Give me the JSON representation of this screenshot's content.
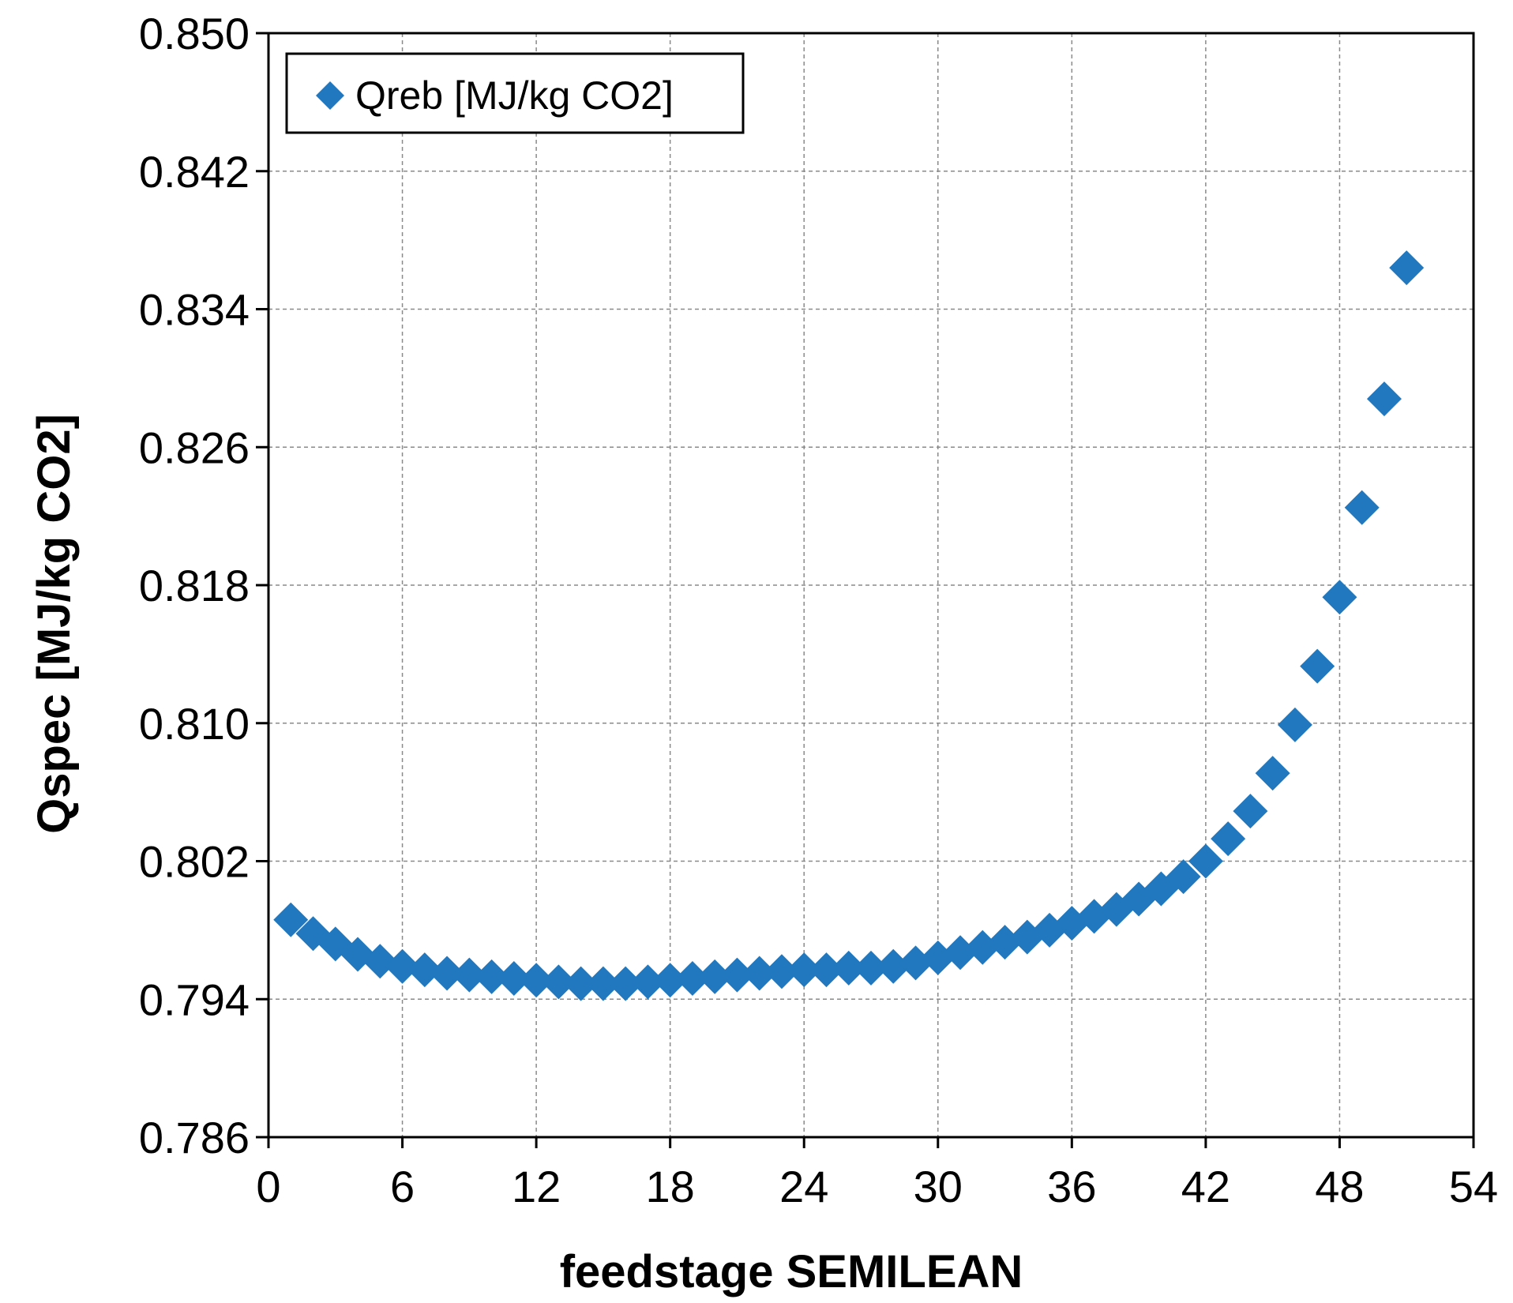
{
  "chart_data": {
    "type": "scatter",
    "title": "",
    "xlabel": "feedstage SEMILEAN",
    "ylabel": "Qspec [MJ/kg CO2]",
    "xlim": [
      0,
      54
    ],
    "ylim": [
      0.786,
      0.85
    ],
    "xticks": [
      0,
      6,
      12,
      18,
      24,
      30,
      36,
      42,
      48,
      54
    ],
    "xtick_labels": [
      "0",
      "6",
      "12",
      "18",
      "24",
      "30",
      "36",
      "42",
      "48",
      "54"
    ],
    "yticks": [
      0.786,
      0.794,
      0.802,
      0.81,
      0.818,
      0.826,
      0.834,
      0.842,
      0.85
    ],
    "ytick_labels": [
      "0.786",
      "0.794",
      "0.802",
      "0.810",
      "0.818",
      "0.826",
      "0.834",
      "0.842",
      "0.850"
    ],
    "grid": true,
    "legend_position": "top-left",
    "series": [
      {
        "name": "Qreb [MJ/kg CO2]",
        "color": "#2178BE",
        "marker": "diamond",
        "x": [
          1,
          2,
          3,
          4,
          5,
          6,
          7,
          8,
          9,
          10,
          11,
          12,
          13,
          14,
          15,
          16,
          17,
          18,
          19,
          20,
          21,
          22,
          23,
          24,
          25,
          26,
          27,
          28,
          29,
          30,
          31,
          32,
          33,
          34,
          35,
          36,
          37,
          38,
          39,
          40,
          41,
          42,
          43,
          44,
          45,
          46,
          47,
          48,
          49,
          50,
          51
        ],
        "y": [
          0.7986,
          0.7978,
          0.7972,
          0.7966,
          0.7962,
          0.7959,
          0.7957,
          0.7955,
          0.7954,
          0.7953,
          0.7952,
          0.7951,
          0.795,
          0.7949,
          0.7949,
          0.7949,
          0.795,
          0.7951,
          0.7952,
          0.7953,
          0.7954,
          0.7955,
          0.7956,
          0.7957,
          0.7957,
          0.7958,
          0.7958,
          0.7959,
          0.7961,
          0.7964,
          0.7967,
          0.797,
          0.7973,
          0.7976,
          0.798,
          0.7984,
          0.7988,
          0.7992,
          0.7998,
          0.8004,
          0.8011,
          0.802,
          0.8033,
          0.8049,
          0.8071,
          0.8099,
          0.8133,
          0.8173,
          0.8225,
          0.8288,
          0.8364
        ]
      }
    ]
  }
}
